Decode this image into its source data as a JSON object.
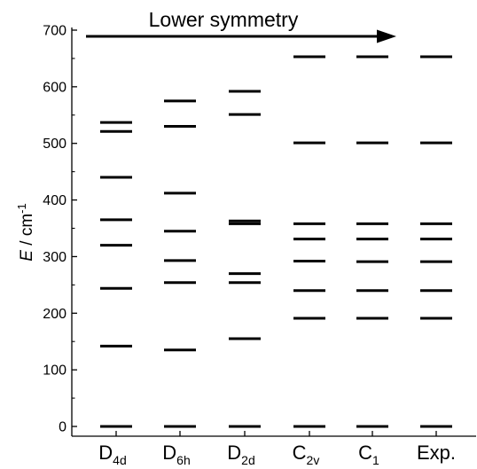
{
  "chart_data": {
    "type": "scatter",
    "title": "Lower symmetry",
    "ylabel_prefix": "E",
    "ylabel_unit": " / cm",
    "ylabel_exp": "-1",
    "ylim": [
      0,
      700
    ],
    "yticks": [
      "0",
      "100",
      "200",
      "300",
      "400",
      "500",
      "600",
      "700"
    ],
    "ytick_values": [
      0,
      100,
      200,
      300,
      400,
      500,
      600,
      700
    ],
    "categories": [
      {
        "main": "D",
        "sub": "4d",
        "trail": ""
      },
      {
        "main": "D",
        "sub": "6h",
        "trail": ""
      },
      {
        "main": "D",
        "sub": "2d",
        "trail": ""
      },
      {
        "main": "C",
        "sub": "2v",
        "trail": ""
      },
      {
        "main": "C",
        "sub": "1",
        "trail": ""
      },
      {
        "main": "Exp.",
        "sub": "",
        "trail": ""
      }
    ],
    "levels": [
      [
        0,
        142,
        244,
        320,
        365,
        440,
        521,
        537
      ],
      [
        0,
        135,
        254,
        293,
        345,
        412,
        530,
        575
      ],
      [
        0,
        155,
        254,
        270,
        358,
        363,
        551,
        592
      ],
      [
        0,
        191,
        240,
        292,
        331,
        358,
        501,
        653
      ],
      [
        0,
        191,
        240,
        291,
        331,
        358,
        501,
        653
      ],
      [
        0,
        191,
        240,
        291,
        331,
        358,
        501,
        653
      ]
    ],
    "grid": false,
    "arrow": "left-to-right"
  }
}
